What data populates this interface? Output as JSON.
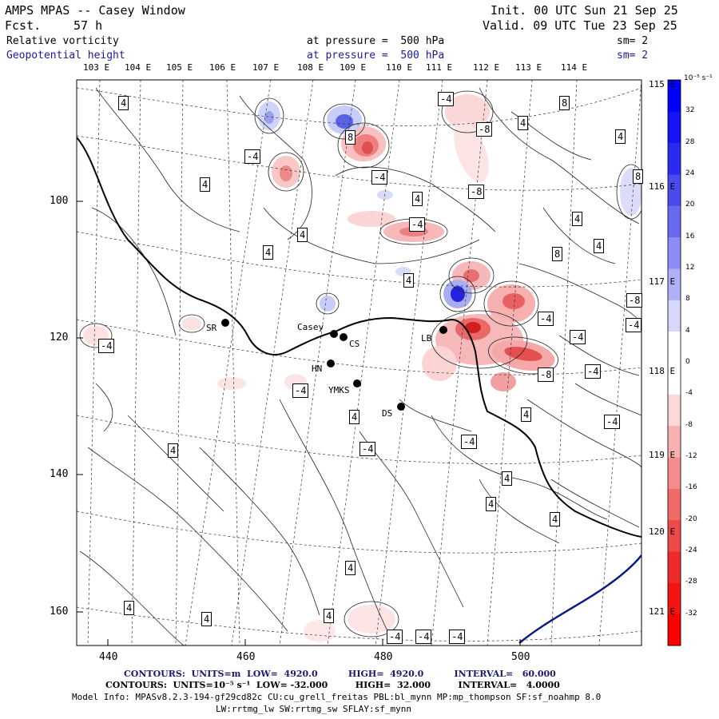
{
  "header": {
    "title": "AMPS MPAS -- Casey Window",
    "fcst_label": "Fcst.",
    "fcst_value": "57 h",
    "init": "Init. 00 UTC Sun 21 Sep 25",
    "valid": "Valid. 09 UTC Tue 23 Sep 25",
    "field1": "Relative vorticity",
    "field1_level": "at pressure =  500 hPa",
    "field1_sm": "sm= 2",
    "field2": "Geopotential height",
    "field2_level": "at pressure =  500 hPa",
    "field2_sm": "sm= 2"
  },
  "axes": {
    "top_lon_labels": [
      "103 E",
      "104 E",
      "105 E",
      "106 E",
      "107 E",
      "108 E",
      "109 E",
      "110 E",
      "111 E",
      "112 E",
      "113 E",
      "114 E"
    ],
    "right_lon_labels": [
      "115 E",
      "116 E",
      "117 E",
      "118 E",
      "119 E",
      "120 E",
      "121 E"
    ],
    "x_ticks": [
      "440",
      "460",
      "480",
      "500"
    ],
    "y_ticks": [
      "100",
      "120",
      "140",
      "160"
    ]
  },
  "stations": [
    {
      "name": "SR"
    },
    {
      "name": "Casey"
    },
    {
      "name": "CS"
    },
    {
      "name": "HN"
    },
    {
      "name": "YMKS"
    },
    {
      "name": "DS"
    },
    {
      "name": "LB"
    }
  ],
  "contour_labels": [
    "4",
    "4",
    "4",
    "4",
    "4",
    "4",
    "4",
    "4",
    "4",
    "4",
    "4",
    "4",
    "4",
    "4",
    "4",
    "4",
    "4",
    "4",
    "4",
    "4",
    "-4",
    "-4",
    "-4",
    "-4",
    "-4",
    "-4",
    "-4",
    "-4",
    "-4",
    "-4",
    "-4",
    "-4",
    "-4",
    "-4",
    "-4",
    "-4",
    "8",
    "8",
    "8",
    "8",
    "-8",
    "-8",
    "-8",
    "-8"
  ],
  "colorbar": {
    "unit_label": "10⁻⁵ s⁻¹",
    "levels": [
      "32",
      "28",
      "24",
      "20",
      "16",
      "12",
      "8",
      "4",
      "0",
      "-4",
      "-8",
      "-12",
      "-16",
      "-20",
      "-24",
      "-28",
      "-32"
    ],
    "colors": {
      "pos_max": "#0000ff",
      "neg_max": "#ff0000",
      "coast": "#000000",
      "height_contour": "#0a1a80"
    }
  },
  "footer": {
    "line1": "CONTOURS:  UNITS=m  LOW=  4920.0          HIGH=  4920.0          INTERVAL=   60.000",
    "line2": "CONTOURS:  UNITS=10⁻⁵ s⁻¹  LOW= -32.000         HIGH=  32.000         INTERVAL=   4.0000",
    "line3": "Model Info: MPASv8.2.3-194-gf29cd82c CU:cu_grell_freitas PBL:bl_mynn MP:mp_thompson SF:sf_noahmp 8.0",
    "line4": "LW:rrtmg_lw SW:rrtmg_sw SFLAY:sf_mynn"
  }
}
